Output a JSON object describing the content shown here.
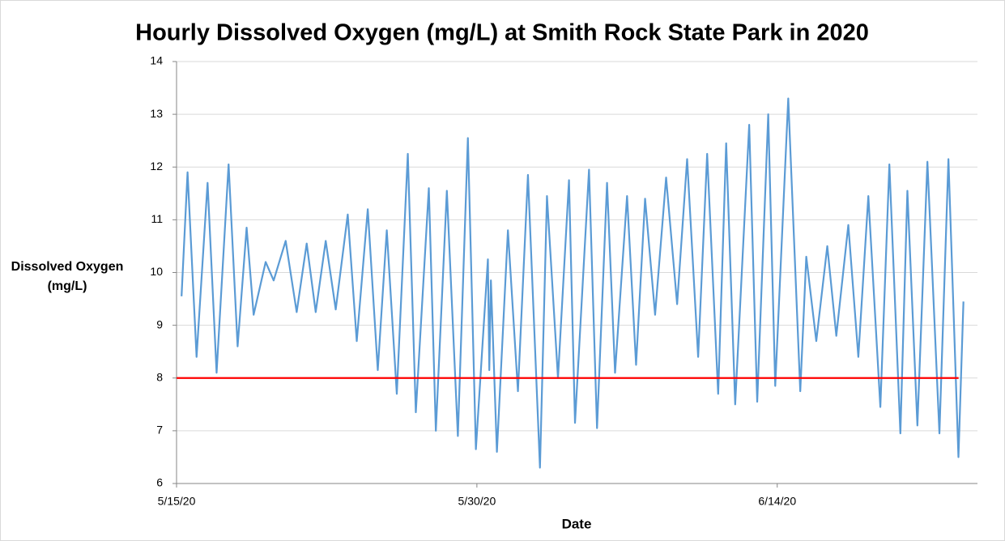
{
  "chart_data": {
    "type": "line",
    "title": "Hourly Dissolved Oxygen (mg/L) at Smith Rock State Park in 2020",
    "x_label": "Date",
    "y_label": "Dissolved Oxygen (mg/L)",
    "xlim": [
      0,
      40
    ],
    "xticks": [
      {
        "value": 0,
        "label": "5/15/20"
      },
      {
        "value": 15,
        "label": "5/30/20"
      },
      {
        "value": 30,
        "label": "6/14/20"
      }
    ],
    "ylim": [
      6,
      14
    ],
    "yticks": [
      6,
      7,
      8,
      9,
      10,
      11,
      12,
      13,
      14
    ],
    "grid": true,
    "hline": {
      "y": 8,
      "color": "#ff0000"
    },
    "series": [
      {
        "name": "Dissolved Oxygen",
        "color": "#5b9bd5",
        "x": [
          0.25,
          0.55,
          1.0,
          1.55,
          2.0,
          2.6,
          3.05,
          3.5,
          3.85,
          4.45,
          4.85,
          5.45,
          6.0,
          6.5,
          6.95,
          7.45,
          7.95,
          8.55,
          9.0,
          9.55,
          10.05,
          10.5,
          11.0,
          11.55,
          11.95,
          12.6,
          12.95,
          13.5,
          14.05,
          14.55,
          14.95,
          15.55,
          15.62,
          15.7,
          16.0,
          16.55,
          17.05,
          17.55,
          18.15,
          18.5,
          19.05,
          19.6,
          19.9,
          20.6,
          21.0,
          21.5,
          21.9,
          22.5,
          22.95,
          23.4,
          23.9,
          24.45,
          25.0,
          25.5,
          26.05,
          26.5,
          27.05,
          27.45,
          27.9,
          28.6,
          29.0,
          29.55,
          29.9,
          30.55,
          31.15,
          31.45,
          31.95,
          32.5,
          32.95,
          33.55,
          34.05,
          34.55,
          35.15,
          35.6,
          36.15,
          36.5,
          37.0,
          37.5,
          38.1,
          38.55,
          39.05,
          39.3
        ],
        "values": [
          9.55,
          11.9,
          8.4,
          11.7,
          8.1,
          12.05,
          8.6,
          10.85,
          9.2,
          10.2,
          9.85,
          10.6,
          9.25,
          10.55,
          9.25,
          10.6,
          9.3,
          11.1,
          8.7,
          11.2,
          8.15,
          10.8,
          7.7,
          12.25,
          7.35,
          11.6,
          7.0,
          11.55,
          6.9,
          12.55,
          6.65,
          10.25,
          8.15,
          9.85,
          6.6,
          10.8,
          7.75,
          11.85,
          6.3,
          11.45,
          8.0,
          11.75,
          7.15,
          11.95,
          7.05,
          11.7,
          8.1,
          11.45,
          8.25,
          11.4,
          9.2,
          11.8,
          9.4,
          12.15,
          8.4,
          12.25,
          7.7,
          12.45,
          7.5,
          12.8,
          7.55,
          13.0,
          7.85,
          13.3,
          7.75,
          10.3,
          8.7,
          10.5,
          8.8,
          10.9,
          8.4,
          11.45,
          7.45,
          12.05,
          6.95,
          11.55,
          7.1,
          12.1,
          6.95,
          12.15,
          6.5,
          9.45
        ]
      }
    ]
  }
}
